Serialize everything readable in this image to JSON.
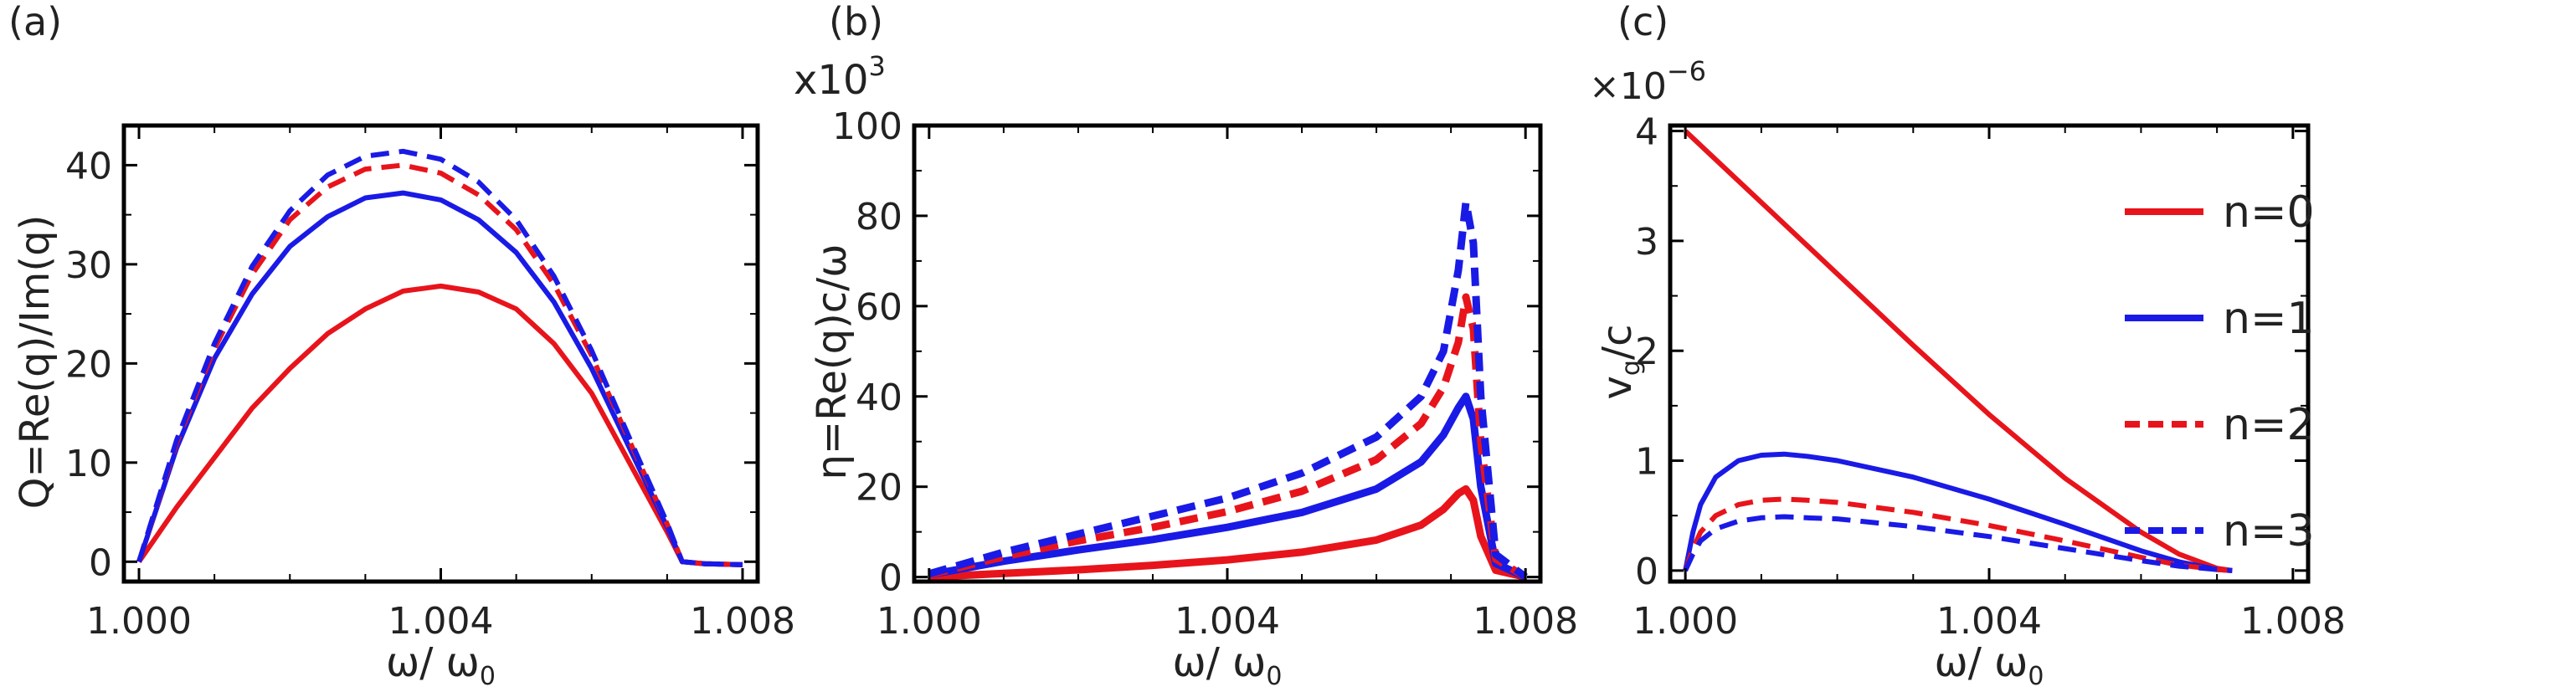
{
  "chart_data": [
    {
      "type": "line",
      "panel_label": "(a)",
      "xlabel": "ω/ ω",
      "xlabel_sub": "0",
      "ylabel": "Q=Re(q)/Im(q)",
      "xlim": [
        0.9998,
        1.0082
      ],
      "ylim": [
        -2,
        44
      ],
      "xticks": [
        1.0,
        1.004,
        1.008
      ],
      "xtick_labels": [
        "1.000",
        "1.004",
        "1.008"
      ],
      "yticks": [
        0,
        10,
        20,
        30,
        40
      ],
      "ytick_labels": [
        "0",
        "10",
        "20",
        "30",
        "40"
      ],
      "series": [
        {
          "name": "n=0",
          "color": "#e8141b",
          "dash": "solid",
          "x": [
            1.0,
            1.0005,
            1.001,
            1.0015,
            1.002,
            1.0025,
            1.003,
            1.0035,
            1.004,
            1.0045,
            1.005,
            1.0055,
            1.006,
            1.0065,
            1.007,
            1.0072,
            1.0075,
            1.008
          ],
          "y": [
            0,
            5.5,
            10.5,
            15.5,
            19.5,
            23.0,
            25.5,
            27.3,
            27.8,
            27.2,
            25.5,
            22.0,
            17.0,
            10.0,
            3.0,
            0,
            -0.2,
            -0.3
          ]
        },
        {
          "name": "n=1",
          "color": "#1a1ae6",
          "dash": "solid",
          "x": [
            1.0,
            1.0005,
            1.001,
            1.0015,
            1.002,
            1.0025,
            1.003,
            1.0035,
            1.004,
            1.0045,
            1.005,
            1.0055,
            1.006,
            1.0065,
            1.007,
            1.0072,
            1.0075,
            1.008
          ],
          "y": [
            0,
            11.5,
            20.5,
            27.0,
            31.8,
            34.8,
            36.7,
            37.2,
            36.5,
            34.5,
            31.2,
            26.2,
            19.5,
            11.5,
            3.5,
            0,
            -0.2,
            -0.3
          ]
        },
        {
          "name": "n=2",
          "color": "#e8141b",
          "dash": "dashed",
          "x": [
            1.0,
            1.0005,
            1.001,
            1.0015,
            1.002,
            1.0025,
            1.003,
            1.0035,
            1.004,
            1.0045,
            1.005,
            1.0055,
            1.006,
            1.0065,
            1.007,
            1.0072,
            1.0075,
            1.008
          ],
          "y": [
            0,
            12.0,
            21.5,
            29.0,
            34.5,
            37.8,
            39.6,
            40.0,
            39.2,
            37.0,
            33.5,
            28.0,
            20.8,
            12.2,
            3.8,
            0,
            -0.2,
            -0.3
          ]
        },
        {
          "name": "n=3",
          "color": "#1a1ae6",
          "dash": "dashed",
          "x": [
            1.0,
            1.0005,
            1.001,
            1.0015,
            1.002,
            1.0025,
            1.003,
            1.0035,
            1.004,
            1.0045,
            1.005,
            1.0055,
            1.006,
            1.0065,
            1.007,
            1.0072,
            1.0075,
            1.008
          ],
          "y": [
            0,
            12.3,
            22.0,
            29.8,
            35.4,
            39.0,
            40.9,
            41.4,
            40.6,
            38.3,
            34.5,
            28.8,
            21.3,
            12.5,
            3.9,
            0,
            -0.2,
            -0.3
          ]
        }
      ]
    },
    {
      "type": "line",
      "panel_label": "(b)",
      "multiplier_base": "x10",
      "multiplier_exp": "3",
      "xlabel": "ω/ ω",
      "xlabel_sub": "0",
      "ylabel": "η=Re(q)c/ω",
      "xlim": [
        0.9998,
        1.0082
      ],
      "ylim": [
        -1,
        100
      ],
      "xticks": [
        1.0,
        1.004,
        1.008
      ],
      "xtick_labels": [
        "1.000",
        "1.004",
        "1.008"
      ],
      "yticks": [
        0,
        20,
        40,
        60,
        80,
        100
      ],
      "ytick_labels": [
        "0",
        "20",
        "40",
        "60",
        "80",
        "100"
      ],
      "series": [
        {
          "name": "n=0",
          "color": "#e8141b",
          "dash": "solid",
          "x": [
            1.0,
            1.001,
            1.002,
            1.003,
            1.004,
            1.005,
            1.006,
            1.0066,
            1.0069,
            1.0071,
            1.0072,
            1.0073,
            1.0074,
            1.0076,
            1.008
          ],
          "y": [
            0,
            0.8,
            1.6,
            2.6,
            3.8,
            5.5,
            8.2,
            11.5,
            15.0,
            18.5,
            19.5,
            17.0,
            9.0,
            1.5,
            0
          ]
        },
        {
          "name": "n=1",
          "color": "#1a1ae6",
          "dash": "solid",
          "x": [
            1.0,
            1.001,
            1.002,
            1.003,
            1.004,
            1.005,
            1.006,
            1.0066,
            1.0069,
            1.0071,
            1.0072,
            1.0073,
            1.0074,
            1.0076,
            1.008
          ],
          "y": [
            0.5,
            3.5,
            6.0,
            8.3,
            11.0,
            14.3,
            19.5,
            25.5,
            31.5,
            37.5,
            40.0,
            35.0,
            20.0,
            3.0,
            0
          ]
        },
        {
          "name": "n=2",
          "color": "#e8141b",
          "dash": "dashed",
          "x": [
            1.0,
            1.001,
            1.002,
            1.003,
            1.004,
            1.005,
            1.006,
            1.0066,
            1.0069,
            1.0071,
            1.0072,
            1.0073,
            1.0074,
            1.0076,
            1.008
          ],
          "y": [
            0.5,
            4.5,
            8.0,
            11.0,
            14.5,
            19.0,
            26.0,
            34.0,
            42.0,
            52.0,
            62.0,
            55.0,
            30.0,
            4.0,
            0
          ]
        },
        {
          "name": "n=3",
          "color": "#1a1ae6",
          "dash": "dashed",
          "x": [
            1.0,
            1.001,
            1.002,
            1.003,
            1.004,
            1.005,
            1.006,
            1.0066,
            1.0069,
            1.0071,
            1.0072,
            1.0073,
            1.0074,
            1.0076,
            1.008
          ],
          "y": [
            0.7,
            5.5,
            9.5,
            13.5,
            17.5,
            23.0,
            31.0,
            40.0,
            50.0,
            68.0,
            83.0,
            74.0,
            40.0,
            5.0,
            0
          ]
        }
      ]
    },
    {
      "type": "line",
      "panel_label": "(c)",
      "multiplier_base": "×10",
      "multiplier_exp": "−6",
      "xlabel": "ω/ ω",
      "xlabel_sub": "0",
      "ylabel": "v",
      "ylabel_sub": "g",
      "ylabel_tail": "/c",
      "xlim": [
        0.9998,
        1.0082
      ],
      "ylim": [
        -0.1,
        4.05
      ],
      "xticks": [
        1.0,
        1.004,
        1.008
      ],
      "xtick_labels": [
        "1.000",
        "1.004",
        "1.008"
      ],
      "yticks": [
        0,
        1,
        2,
        3,
        4
      ],
      "ytick_labels": [
        "0",
        "1",
        "2",
        "3",
        "4"
      ],
      "series": [
        {
          "name": "n=0",
          "color": "#e8141b",
          "dash": "solid",
          "x": [
            1.0,
            1.001,
            1.002,
            1.003,
            1.004,
            1.005,
            1.006,
            1.0065,
            1.007,
            1.0072
          ],
          "y": [
            4.0,
            3.35,
            2.7,
            2.05,
            1.42,
            0.84,
            0.35,
            0.15,
            0.02,
            0
          ]
        },
        {
          "name": "n=1",
          "color": "#1a1ae6",
          "dash": "solid",
          "x": [
            1.0,
            1.0001,
            1.0002,
            1.0004,
            1.0007,
            1.001,
            1.0013,
            1.0016,
            1.002,
            1.003,
            1.004,
            1.005,
            1.006,
            1.0065,
            1.007,
            1.0072
          ],
          "y": [
            0,
            0.35,
            0.6,
            0.85,
            1.0,
            1.05,
            1.06,
            1.04,
            1.0,
            0.85,
            0.65,
            0.42,
            0.18,
            0.08,
            0.01,
            0
          ]
        },
        {
          "name": "n=2",
          "color": "#e8141b",
          "dash": "dashed",
          "x": [
            1.0,
            1.0001,
            1.0002,
            1.0004,
            1.0007,
            1.001,
            1.0013,
            1.0016,
            1.002,
            1.003,
            1.004,
            1.005,
            1.006,
            1.0065,
            1.007,
            1.0072
          ],
          "y": [
            0,
            0.2,
            0.35,
            0.5,
            0.6,
            0.64,
            0.65,
            0.64,
            0.62,
            0.53,
            0.41,
            0.27,
            0.12,
            0.05,
            0.01,
            0
          ]
        },
        {
          "name": "n=3",
          "color": "#1a1ae6",
          "dash": "dashed",
          "x": [
            1.0,
            1.0001,
            1.0002,
            1.0004,
            1.0007,
            1.001,
            1.0013,
            1.0016,
            1.002,
            1.003,
            1.004,
            1.005,
            1.006,
            1.0065,
            1.007,
            1.0072
          ],
          "y": [
            0,
            0.15,
            0.27,
            0.38,
            0.45,
            0.48,
            0.49,
            0.48,
            0.47,
            0.4,
            0.31,
            0.2,
            0.09,
            0.04,
            0.01,
            0
          ]
        }
      ]
    }
  ],
  "legend": {
    "placement": "right",
    "entries": [
      {
        "label": "n=0",
        "color": "#e8141b",
        "dash": "solid"
      },
      {
        "label": "n=1",
        "color": "#1a1ae6",
        "dash": "solid"
      },
      {
        "label": "n=2",
        "color": "#e8141b",
        "dash": "dashed"
      },
      {
        "label": "n=3",
        "color": "#1a1ae6",
        "dash": "dashed"
      }
    ]
  }
}
